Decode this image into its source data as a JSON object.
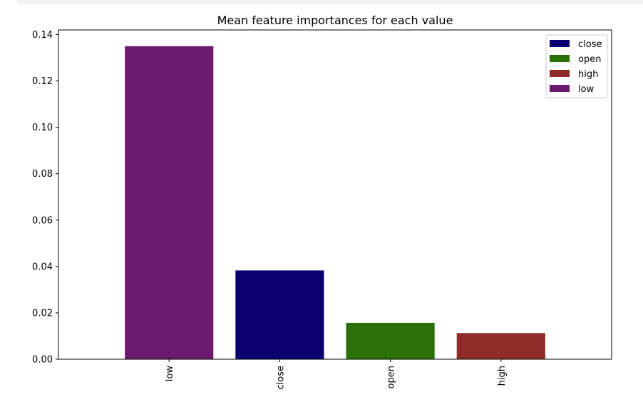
{
  "chart_data": {
    "type": "bar",
    "title": "Mean feature importances for each value",
    "xlabel": "",
    "ylabel": "",
    "categories": [
      "low",
      "close",
      "open",
      "high"
    ],
    "values": [
      0.135,
      0.0383,
      0.0157,
      0.0113
    ],
    "bar_colors": [
      "#6c1a6f",
      "#0b0070",
      "#2c7008",
      "#8f2c2a"
    ],
    "ylim": [
      0,
      0.142
    ],
    "yticks": [
      "0.00",
      "0.02",
      "0.04",
      "0.06",
      "0.08",
      "0.10",
      "0.12",
      "0.14"
    ],
    "ytick_values": [
      0,
      0.02,
      0.04,
      0.06,
      0.08,
      0.1,
      0.12,
      0.14
    ],
    "grid": false,
    "legend": {
      "position": "top-right",
      "entries": [
        {
          "label": "close",
          "color": "#0b0070"
        },
        {
          "label": "open",
          "color": "#2c7008"
        },
        {
          "label": "high",
          "color": "#8f2c2a"
        },
        {
          "label": "low",
          "color": "#6c1a6f"
        }
      ]
    }
  }
}
